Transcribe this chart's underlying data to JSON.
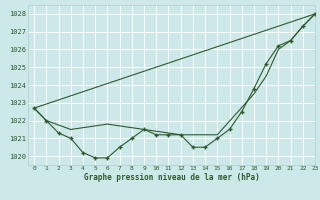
{
  "title": "Graphe pression niveau de la mer (hPa)",
  "background_color": "#cce8e8",
  "grid_color": "#b0cccc",
  "line_color": "#2d5a2d",
  "xlim": [
    -0.5,
    23
  ],
  "ylim": [
    1019.5,
    1028.5
  ],
  "yticks": [
    1020,
    1021,
    1022,
    1023,
    1024,
    1025,
    1026,
    1027,
    1028
  ],
  "xticks": [
    0,
    1,
    2,
    3,
    4,
    5,
    6,
    7,
    8,
    9,
    10,
    11,
    12,
    13,
    14,
    15,
    16,
    17,
    18,
    19,
    20,
    21,
    22,
    23
  ],
  "series1": {
    "x": [
      0,
      1,
      2,
      3,
      4,
      5,
      6,
      7,
      8,
      9,
      10,
      11,
      12,
      13,
      14,
      15,
      16,
      17,
      18,
      19,
      20,
      21,
      22,
      23
    ],
    "y": [
      1022.7,
      1022.0,
      1021.3,
      1021.0,
      1020.2,
      1019.9,
      1019.9,
      1020.5,
      1021.0,
      1021.5,
      1021.2,
      1021.2,
      1021.2,
      1020.5,
      1020.5,
      1021.0,
      1021.5,
      1022.5,
      1023.8,
      1025.2,
      1026.2,
      1026.5,
      1027.3,
      1028.0
    ]
  },
  "series2": {
    "x": [
      0,
      1,
      3,
      6,
      9,
      12,
      15,
      18,
      19,
      20,
      21,
      22,
      23
    ],
    "y": [
      1022.7,
      1022.0,
      1021.5,
      1021.8,
      1021.5,
      1021.2,
      1021.2,
      1023.5,
      1024.5,
      1026.0,
      1026.5,
      1027.3,
      1028.0
    ]
  },
  "series3": {
    "x": [
      0,
      23
    ],
    "y": [
      1022.7,
      1028.0
    ]
  },
  "figsize": [
    3.2,
    2.0
  ],
  "dpi": 100
}
